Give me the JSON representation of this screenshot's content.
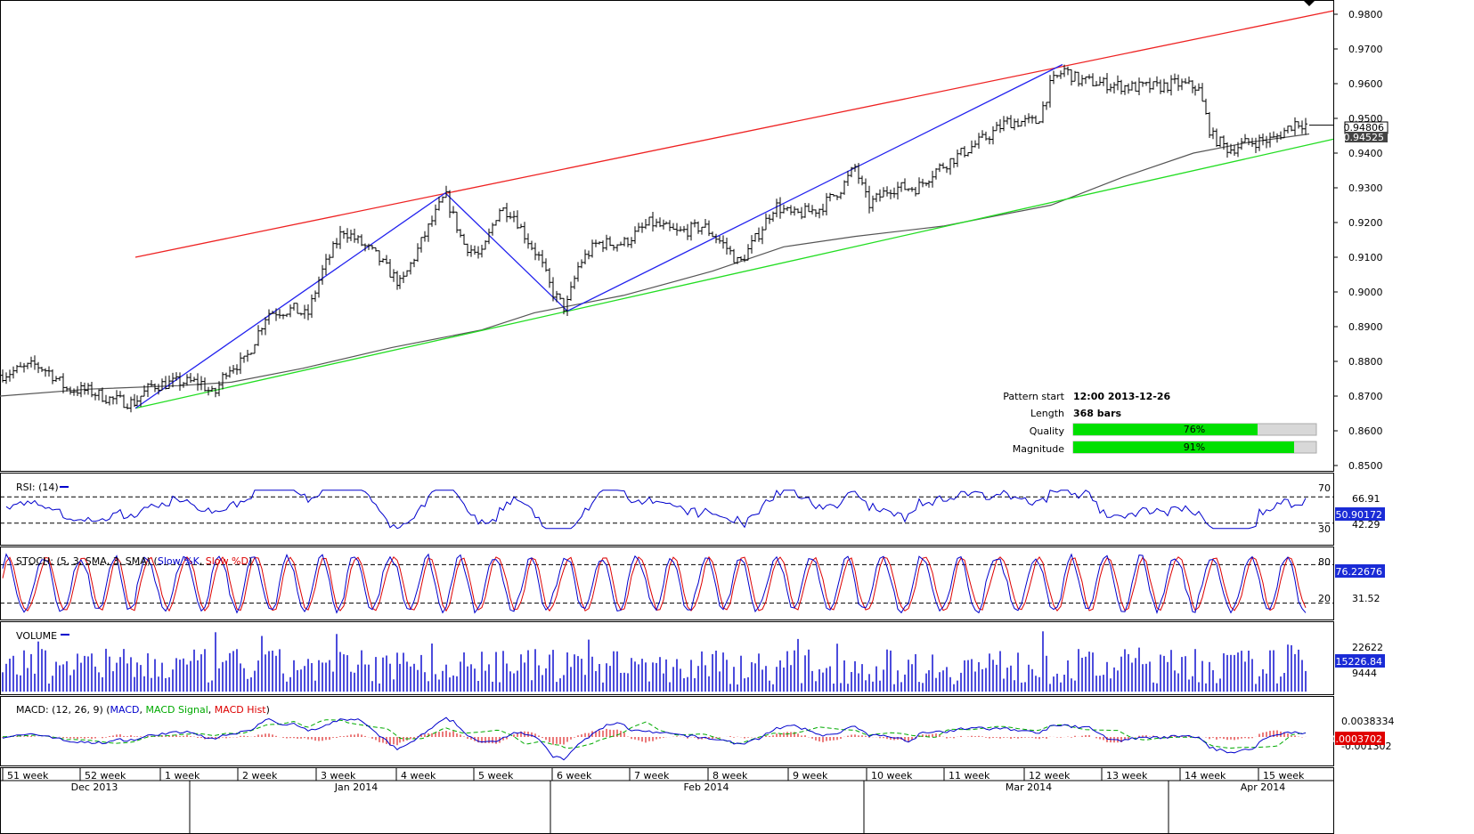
{
  "info": {
    "pattern_start_label": "Pattern start",
    "pattern_start_value": "12:00 2013-12-26",
    "length_label": "Length",
    "length_value": "368 bars",
    "quality_label": "Quality",
    "quality_text": "76%",
    "quality_value": 0.76,
    "magnitude_label": "Magnitude",
    "magnitude_text": "91%",
    "magnitude_value": 0.91
  },
  "price_axis": {
    "ticks": [
      "0.9800",
      "0.9700",
      "0.9600",
      "0.9500",
      "0.9400",
      "0.9300",
      "0.9200",
      "0.9100",
      "0.9000",
      "0.8900",
      "0.8800",
      "0.8700",
      "0.8600",
      "0.8500"
    ],
    "badge1": "0.94806",
    "badge2": "0.94525"
  },
  "rsi": {
    "title": "RSI: (14)",
    "level_high": "70",
    "level_low": "30",
    "tick_a": "66.91",
    "tick_b": "42.29",
    "badge": "50.90172"
  },
  "stoch": {
    "title_prefix": "STOCH: (5, 3, SMA, 3, SMA) (",
    "k_label": "Slow %K",
    "d_label": "Slow %D",
    "title_suffix": ")",
    "level_high": "80",
    "level_low": "20",
    "tick": "31.52",
    "badge": "76.22676"
  },
  "volume": {
    "title": "VOLUME",
    "tick_a": "22622",
    "tick_b": "9444",
    "badge": "15226.84"
  },
  "macd": {
    "title_prefix": "MACD: (12, 26, 9) (",
    "macd_label": "MACD",
    "signal_label": "MACD Signal",
    "hist_label": "MACD Hist",
    "title_suffix": ")",
    "tick_a": "0.0038334",
    "tick_b": "-0.001302",
    "badge": "0.0003702"
  },
  "time_axis": {
    "weeks": [
      "51 week",
      "52 week",
      "1 week",
      "2 week",
      "3 week",
      "4 week",
      "5 week",
      "6 week",
      "7 week",
      "8 week",
      "9 week",
      "10 week",
      "11 week",
      "12 week",
      "13 week",
      "14 week",
      "15 week"
    ],
    "months": [
      "Dec 2013",
      "Jan 2014",
      "Feb 2014",
      "Mar 2014",
      "Apr 2014"
    ]
  },
  "chart_data": {
    "type": "candlestick-ohlc",
    "title": "",
    "y_range": [
      0.848,
      0.982
    ],
    "y_ticks": [
      0.98,
      0.97,
      0.96,
      0.95,
      0.94,
      0.93,
      0.92,
      0.91,
      0.9,
      0.89,
      0.88,
      0.87,
      0.86,
      0.85
    ],
    "last_price": 0.94806,
    "ma_value": 0.94525,
    "close_path": [
      [
        0,
        0.876
      ],
      [
        40,
        0.879
      ],
      [
        55,
        0.877
      ],
      [
        75,
        0.872
      ],
      [
        100,
        0.8715
      ],
      [
        125,
        0.869
      ],
      [
        150,
        0.868
      ],
      [
        170,
        0.873
      ],
      [
        200,
        0.874
      ],
      [
        225,
        0.874
      ],
      [
        240,
        0.87
      ],
      [
        255,
        0.878
      ],
      [
        275,
        0.88
      ],
      [
        300,
        0.894
      ],
      [
        330,
        0.895
      ],
      [
        345,
        0.893
      ],
      [
        360,
        0.905
      ],
      [
        385,
        0.918
      ],
      [
        400,
        0.915
      ],
      [
        420,
        0.911
      ],
      [
        450,
        0.902
      ],
      [
        465,
        0.91
      ],
      [
        480,
        0.918
      ],
      [
        500,
        0.928
      ],
      [
        520,
        0.914
      ],
      [
        540,
        0.91
      ],
      [
        560,
        0.924
      ],
      [
        575,
        0.923
      ],
      [
        590,
        0.916
      ],
      [
        605,
        0.91
      ],
      [
        620,
        0.9
      ],
      [
        635,
        0.895
      ],
      [
        650,
        0.908
      ],
      [
        670,
        0.914
      ],
      [
        700,
        0.914
      ],
      [
        730,
        0.92
      ],
      [
        760,
        0.917
      ],
      [
        790,
        0.919
      ],
      [
        815,
        0.913
      ],
      [
        830,
        0.908
      ],
      [
        850,
        0.916
      ],
      [
        870,
        0.925
      ],
      [
        890,
        0.922
      ],
      [
        920,
        0.924
      ],
      [
        945,
        0.93
      ],
      [
        960,
        0.936
      ],
      [
        975,
        0.925
      ],
      [
        1000,
        0.93
      ],
      [
        1030,
        0.93
      ],
      [
        1050,
        0.935
      ],
      [
        1080,
        0.94
      ],
      [
        1110,
        0.945
      ],
      [
        1130,
        0.949
      ],
      [
        1165,
        0.949
      ],
      [
        1180,
        0.96
      ],
      [
        1195,
        0.964
      ],
      [
        1210,
        0.961
      ],
      [
        1240,
        0.96
      ],
      [
        1270,
        0.959
      ],
      [
        1300,
        0.959
      ],
      [
        1320,
        0.96
      ],
      [
        1345,
        0.959
      ],
      [
        1360,
        0.945
      ],
      [
        1380,
        0.941
      ],
      [
        1400,
        0.943
      ],
      [
        1430,
        0.944
      ],
      [
        1455,
        0.949
      ],
      [
        1470,
        0.948
      ]
    ],
    "trendline_upper": [
      [
        152,
        0.91
      ],
      [
        1497,
        0.981
      ]
    ],
    "trendline_lower": [
      [
        152,
        0.8665
      ],
      [
        1497,
        0.944
      ]
    ],
    "moving_average": [
      [
        0,
        0.87
      ],
      [
        100,
        0.872
      ],
      [
        200,
        0.873
      ],
      [
        260,
        0.874
      ],
      [
        340,
        0.878
      ],
      [
        440,
        0.884
      ],
      [
        540,
        0.889
      ],
      [
        600,
        0.894
      ],
      [
        700,
        0.899
      ],
      [
        800,
        0.906
      ],
      [
        880,
        0.913
      ],
      [
        960,
        0.916
      ],
      [
        1060,
        0.919
      ],
      [
        1180,
        0.925
      ],
      [
        1260,
        0.933
      ],
      [
        1340,
        0.94
      ],
      [
        1400,
        0.943
      ],
      [
        1470,
        0.9455
      ]
    ],
    "pattern_lines": [
      [
        152,
        0.8665
      ],
      [
        500,
        0.9285
      ],
      [
        637,
        0.8945
      ],
      [
        1193,
        0.9655
      ]
    ],
    "rsi_levels": [
      70,
      30
    ],
    "stoch_levels": [
      80,
      20
    ]
  }
}
